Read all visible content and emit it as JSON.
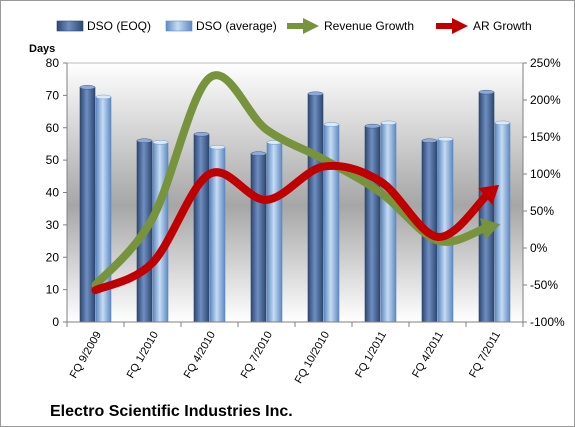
{
  "chart_data": {
    "type": "bar",
    "title": "Electro Scientific Industries Inc.",
    "ylabel": "Days",
    "categories": [
      "FQ 9/2009",
      "FQ 1/2010",
      "FQ 4/2010",
      "FQ 7/2010",
      "FQ 10/2010",
      "FQ 1/2011",
      "FQ 4/2011",
      "FQ 7/2011"
    ],
    "ylim": [
      0,
      80
    ],
    "y_ticks": [
      "0",
      "10",
      "20",
      "30",
      "40",
      "50",
      "60",
      "70",
      "80"
    ],
    "y2lim": [
      -100,
      250
    ],
    "y2_ticks": [
      "-100%",
      "-50%",
      "0%",
      "50%",
      "100%",
      "150%",
      "200%",
      "250%"
    ],
    "legend_position": "top",
    "grid": false,
    "series": [
      {
        "name": "DSO (EOQ)",
        "kind": "bar",
        "axis": "left",
        "color": "#4f6fa0",
        "values": [
          72.5,
          56,
          58,
          52,
          70.5,
          60.5,
          56,
          71
        ]
      },
      {
        "name": "DSO (average)",
        "kind": "bar",
        "axis": "left",
        "color": "#8db4e2",
        "values": [
          69.5,
          55.5,
          54,
          55.5,
          61,
          61.5,
          56.5,
          61.5
        ]
      },
      {
        "name": "Revenue Growth",
        "kind": "arrow-line",
        "axis": "right",
        "color": "#77933c",
        "values": [
          -50,
          40,
          230,
          160,
          120,
          75,
          10,
          30
        ]
      },
      {
        "name": "AR Growth",
        "kind": "arrow-line",
        "axis": "right",
        "color": "#c00000",
        "values": [
          -57,
          -20,
          100,
          65,
          110,
          90,
          15,
          80
        ]
      }
    ]
  }
}
